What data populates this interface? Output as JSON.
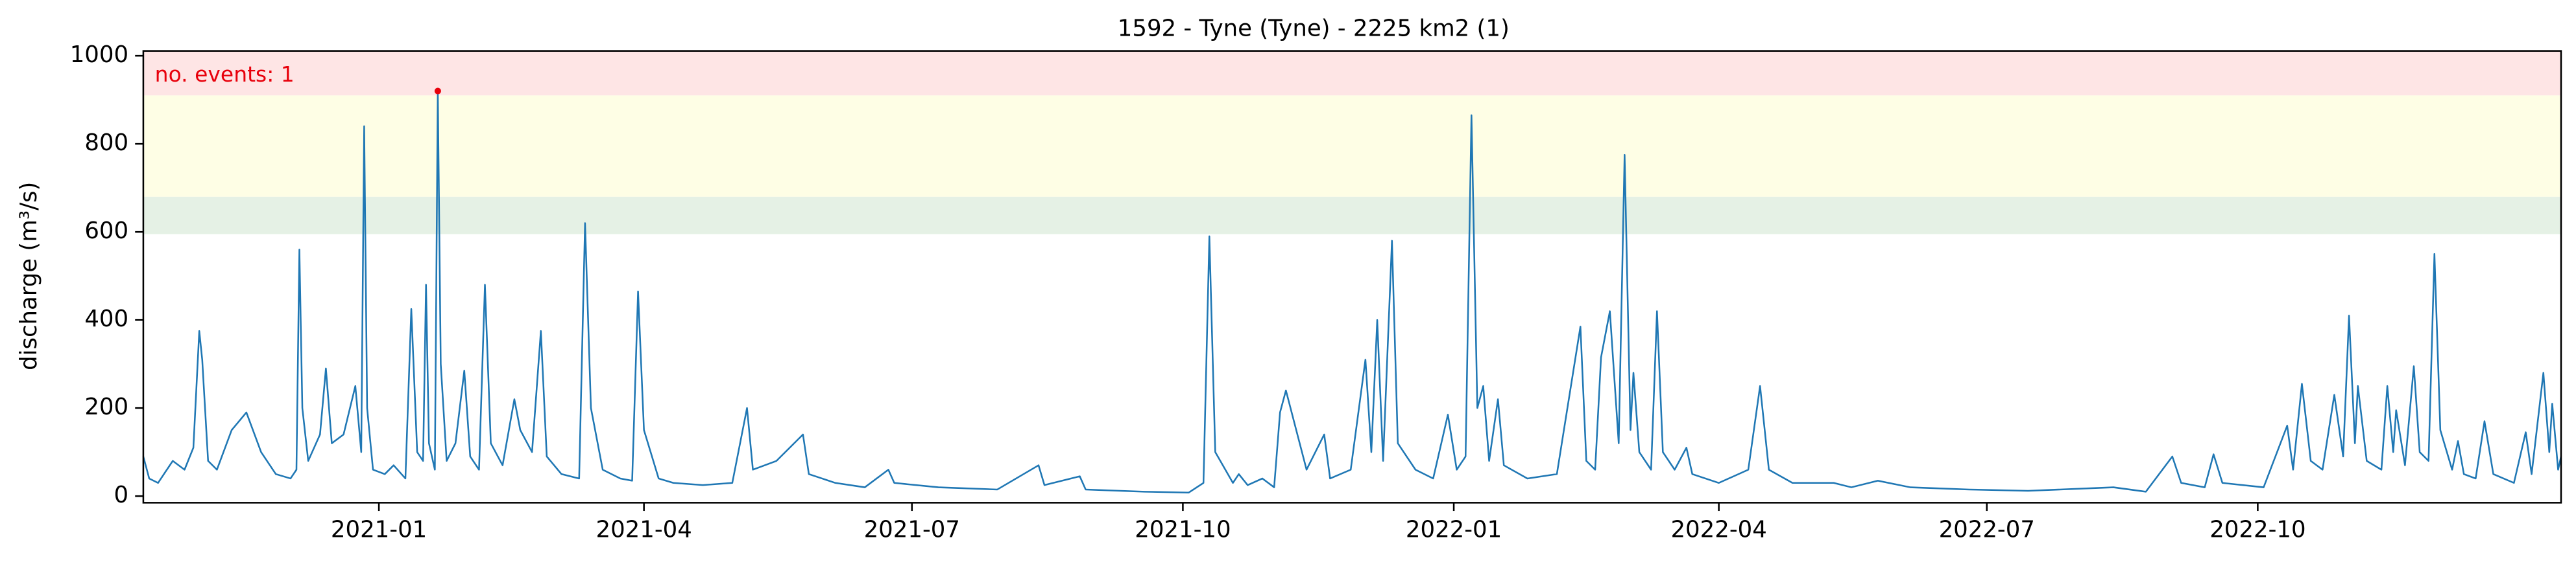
{
  "chart_data": {
    "type": "line",
    "title": "1592 - Tyne (Tyne) - 2225 km2 (1)",
    "ylabel": "discharge (m³/s)",
    "annotation": "no. events: 1",
    "annotation_color": "#e8000b",
    "color": "#1f77b4",
    "x": [
      -80,
      -78,
      -75,
      -70,
      -66,
      -63,
      -61,
      -60,
      -58,
      -55,
      -50,
      -45,
      -40,
      -35,
      -30,
      -28,
      -27,
      -26,
      -24,
      -20,
      -18,
      -16,
      -12,
      -8,
      -6,
      -5,
      -4,
      -2,
      2,
      5,
      9,
      11,
      13,
      15,
      16,
      17,
      19,
      20,
      21,
      23,
      26,
      29,
      31,
      34,
      36,
      38,
      42,
      46,
      48,
      52,
      55,
      57,
      62,
      68,
      70,
      72,
      76,
      82,
      86,
      88,
      90,
      95,
      100,
      110,
      120,
      125,
      127,
      135,
      144,
      146,
      155,
      165,
      173,
      175,
      190,
      210,
      224,
      226,
      238,
      240,
      260,
      275,
      280,
      282,
      284,
      290,
      292,
      295,
      300,
      304,
      306,
      308,
      315,
      321,
      323,
      330,
      335,
      337,
      339,
      341,
      344,
      346,
      352,
      358,
      363,
      366,
      369,
      371,
      373,
      375,
      377,
      380,
      382,
      390,
      400,
      408,
      410,
      413,
      415,
      418,
      421,
      423,
      425,
      426,
      428,
      432,
      434,
      436,
      440,
      444,
      446,
      455,
      465,
      469,
      472,
      480,
      494,
      500,
      509,
      520,
      540,
      560,
      589,
      600,
      609,
      612,
      620,
      623,
      626,
      640,
      648,
      650,
      653,
      656,
      660,
      664,
      667,
      669,
      671,
      672,
      675,
      680,
      682,
      684,
      685,
      688,
      691,
      693,
      696,
      698,
      700,
      704,
      706,
      708,
      712,
      715,
      718,
      725,
      729,
      731,
      735,
      737,
      738,
      740,
      741
    ],
    "values": [
      90,
      40,
      30,
      80,
      60,
      110,
      375,
      310,
      80,
      60,
      150,
      190,
      100,
      50,
      40,
      60,
      560,
      200,
      80,
      140,
      290,
      120,
      140,
      250,
      100,
      840,
      200,
      60,
      50,
      70,
      40,
      425,
      100,
      80,
      480,
      120,
      60,
      920,
      300,
      80,
      120,
      285,
      90,
      60,
      480,
      120,
      70,
      220,
      150,
      100,
      375,
      90,
      50,
      40,
      620,
      200,
      60,
      40,
      35,
      465,
      150,
      40,
      30,
      25,
      30,
      200,
      60,
      80,
      140,
      50,
      30,
      20,
      60,
      30,
      20,
      15,
      70,
      25,
      45,
      15,
      10,
      8,
      30,
      590,
      100,
      30,
      50,
      25,
      40,
      20,
      190,
      240,
      60,
      140,
      40,
      60,
      310,
      100,
      400,
      80,
      580,
      120,
      60,
      40,
      185,
      60,
      90,
      865,
      200,
      250,
      80,
      220,
      70,
      40,
      50,
      385,
      80,
      60,
      315,
      420,
      120,
      775,
      150,
      280,
      100,
      60,
      420,
      100,
      60,
      110,
      50,
      30,
      60,
      250,
      60,
      30,
      30,
      20,
      35,
      20,
      15,
      12,
      20,
      10,
      90,
      30,
      20,
      95,
      30,
      20,
      160,
      60,
      255,
      80,
      60,
      230,
      90,
      410,
      120,
      250,
      80,
      60,
      250,
      100,
      195,
      70,
      295,
      100,
      80,
      550,
      150,
      60,
      125,
      50,
      40,
      170,
      50,
      30,
      145,
      50,
      280,
      100,
      210,
      60,
      90
    ],
    "events": [
      {
        "x": 20,
        "value": 920,
        "color": "#e8000b"
      }
    ],
    "bands": [
      {
        "from": 595,
        "to": 680,
        "color": "#e5f1e5"
      },
      {
        "from": 680,
        "to": 910,
        "color": "#fefee5"
      },
      {
        "from": 910,
        "to": 1011,
        "color": "#fee5e5"
      }
    ],
    "xlim": [
      -80,
      741
    ],
    "ylim": [
      -15,
      1011
    ],
    "xticks": [
      {
        "value": 0,
        "label": "2021-01"
      },
      {
        "value": 90,
        "label": "2021-04"
      },
      {
        "value": 181,
        "label": "2021-07"
      },
      {
        "value": 273,
        "label": "2021-10"
      },
      {
        "value": 365,
        "label": "2022-01"
      },
      {
        "value": 455,
        "label": "2022-04"
      },
      {
        "value": 546,
        "label": "2022-07"
      },
      {
        "value": 638,
        "label": "2022-10"
      }
    ],
    "yticks": [
      0,
      200,
      400,
      600,
      800,
      1000
    ]
  }
}
